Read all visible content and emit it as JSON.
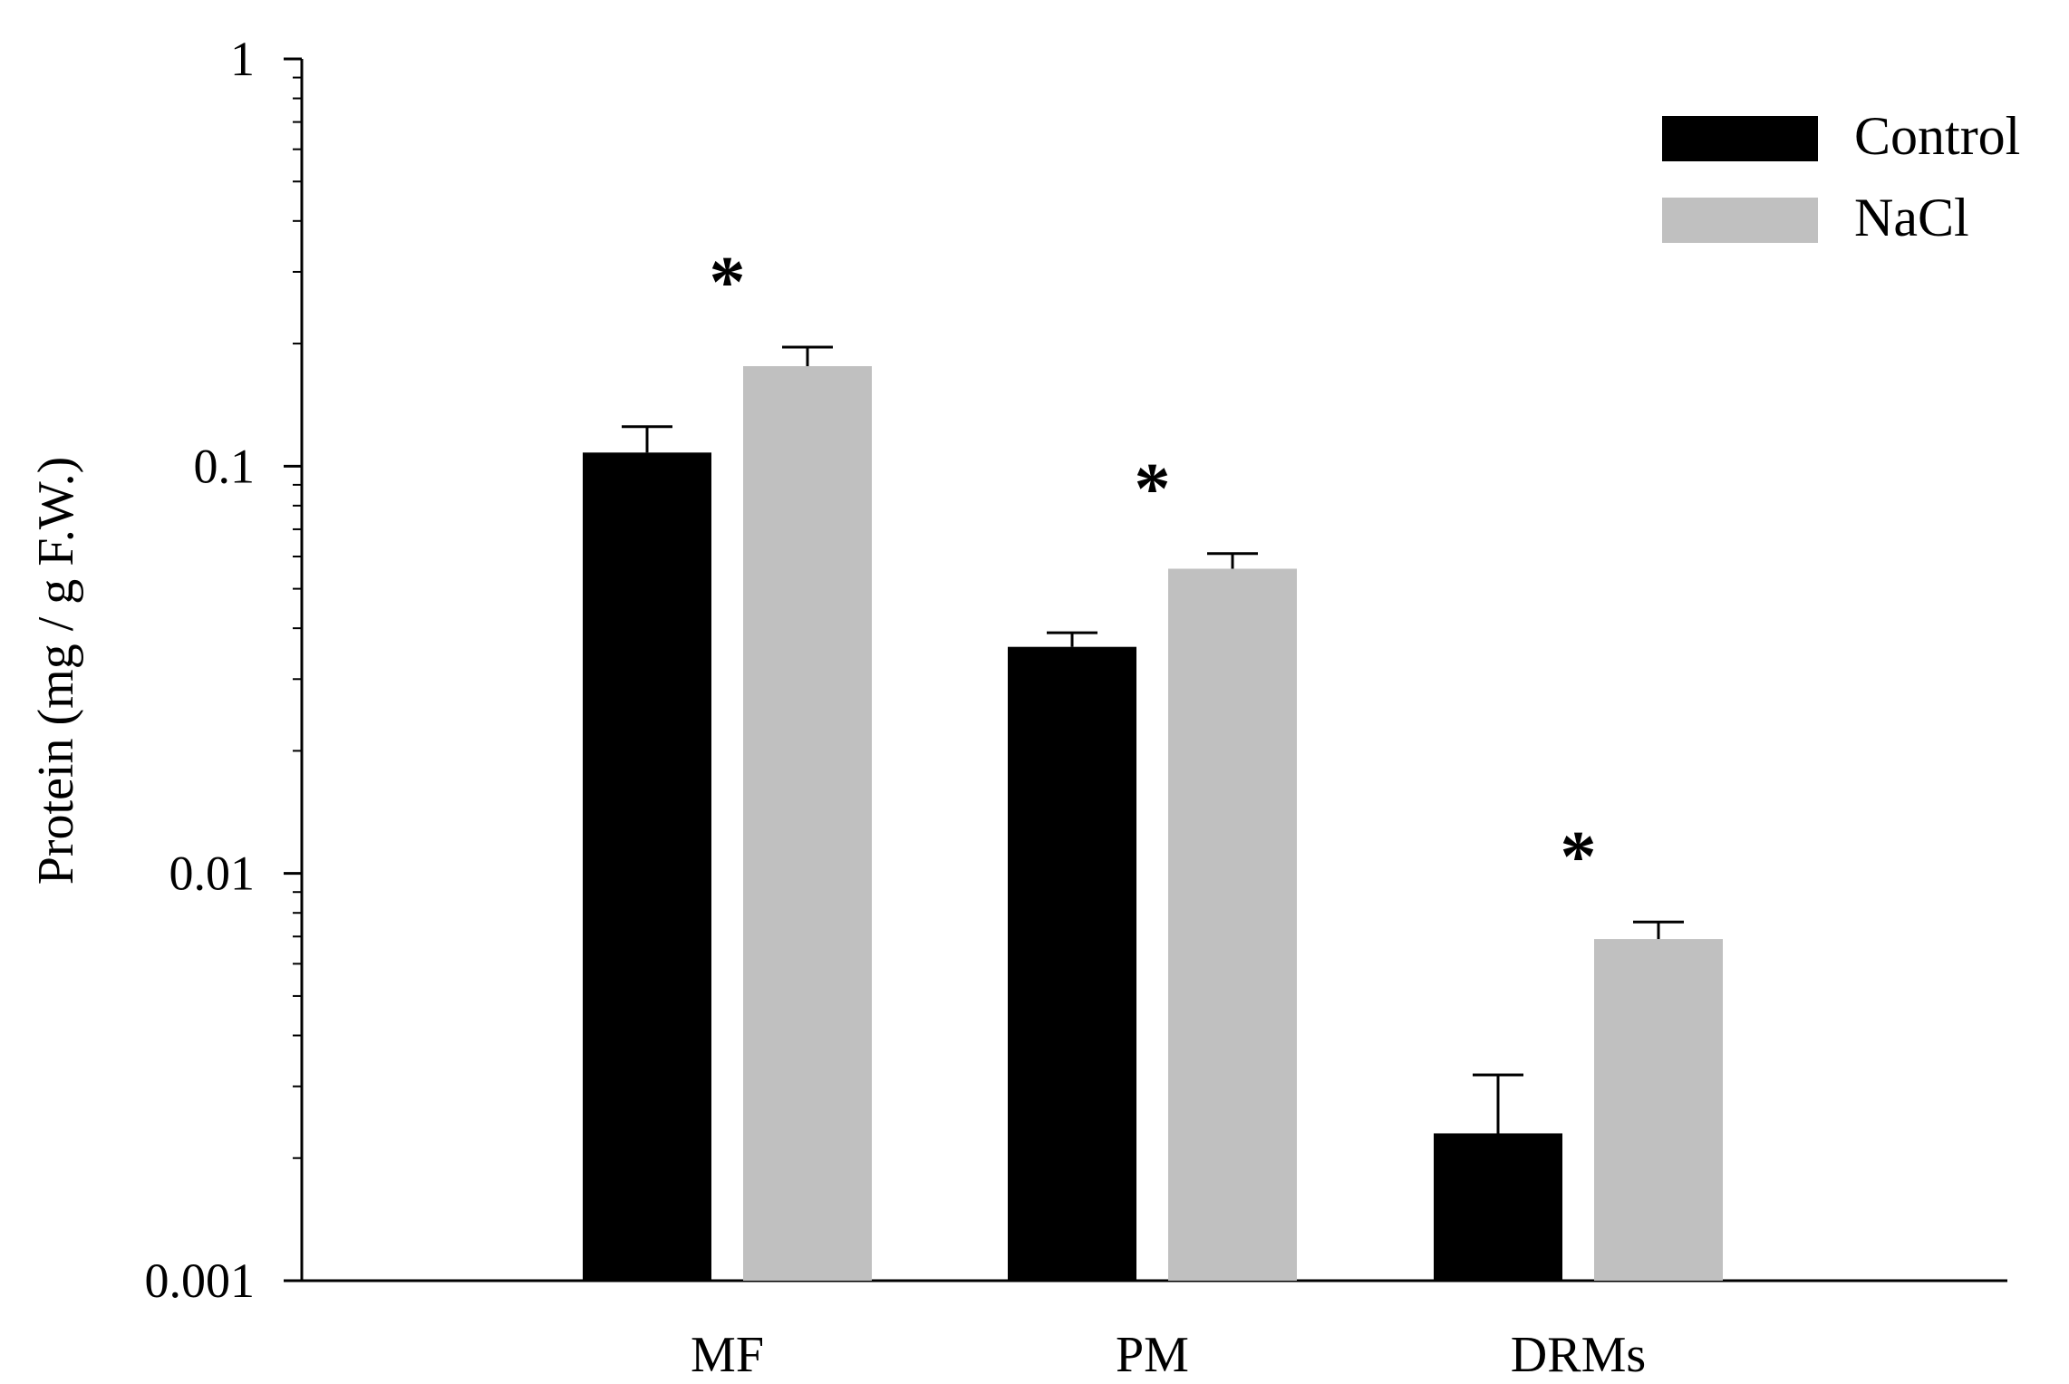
{
  "chart_data": {
    "type": "bar",
    "ylabel": "Protein (mg / g F.W.)",
    "yscale": "log",
    "ylim": [
      0.001,
      1
    ],
    "yticks": [
      {
        "value": 1,
        "label": "1"
      },
      {
        "value": 0.1,
        "label": "0.1"
      },
      {
        "value": 0.01,
        "label": "0.01"
      },
      {
        "value": 0.001,
        "label": "0.001"
      }
    ],
    "categories": [
      "MF",
      "PM",
      "DRMs"
    ],
    "series": [
      {
        "name": "Control",
        "color": "#000000",
        "values": [
          0.108,
          0.036,
          0.0023
        ],
        "errors": [
          0.017,
          0.003,
          0.0009
        ]
      },
      {
        "name": "NaCl",
        "color": "#c0c0c0",
        "values": [
          0.176,
          0.056,
          0.0069
        ],
        "errors": [
          0.02,
          0.005,
          0.0007
        ]
      }
    ],
    "significance": [
      "*",
      "*",
      "*"
    ],
    "legend_position": "top-right",
    "grid": false
  }
}
